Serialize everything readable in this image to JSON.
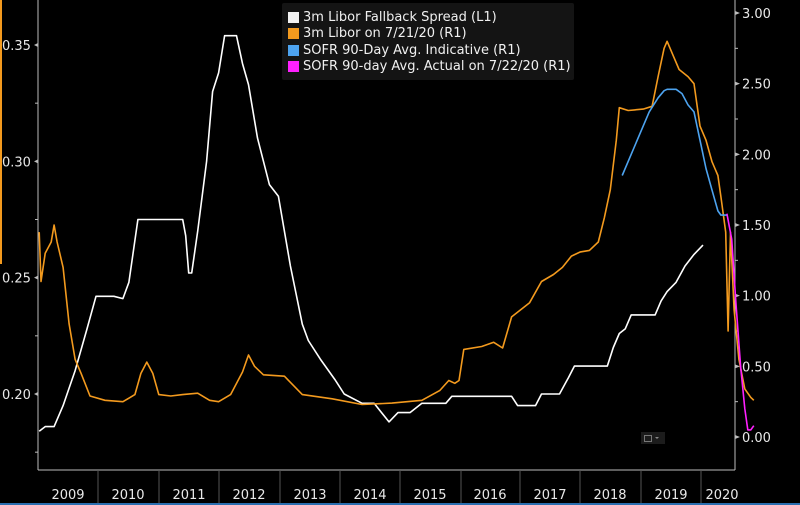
{
  "chart_data": {
    "type": "line",
    "title": "",
    "xlabel": "",
    "ylabel_left": "",
    "ylabel_right": "",
    "x_ticks": [
      "2009",
      "2010",
      "2011",
      "2012",
      "2013",
      "2014",
      "2015",
      "2016",
      "2017",
      "2018",
      "2019",
      "2020"
    ],
    "left_axis": {
      "ticks": [
        "0.35",
        "0.30",
        "0.25",
        "0.20"
      ],
      "range": [
        0.18,
        0.37
      ]
    },
    "right_axis": {
      "ticks": [
        "3.00",
        "2.50",
        "2.00",
        "1.50",
        "1.00",
        "0.50",
        "0.00"
      ],
      "range": [
        -0.25,
        3.1
      ]
    },
    "legend_position": "top-center",
    "grid": false,
    "series": [
      {
        "name": "3m Libor Fallback Spread (L1)",
        "axis": "left",
        "color": "#ffffff",
        "points": [
          [
            2008.6,
            0.184
          ],
          [
            2008.7,
            0.186
          ],
          [
            2008.85,
            0.186
          ],
          [
            2009.0,
            0.195
          ],
          [
            2009.2,
            0.21
          ],
          [
            2009.4,
            0.228
          ],
          [
            2009.55,
            0.242
          ],
          [
            2009.85,
            0.242
          ],
          [
            2010.0,
            0.241
          ],
          [
            2010.1,
            0.248
          ],
          [
            2010.25,
            0.275
          ],
          [
            2010.7,
            0.275
          ],
          [
            2011.0,
            0.275
          ],
          [
            2011.05,
            0.268
          ],
          [
            2011.1,
            0.252
          ],
          [
            2011.15,
            0.252
          ],
          [
            2011.25,
            0.27
          ],
          [
            2011.4,
            0.3
          ],
          [
            2011.5,
            0.33
          ],
          [
            2011.6,
            0.338
          ],
          [
            2011.7,
            0.354
          ],
          [
            2011.9,
            0.354
          ],
          [
            2012.0,
            0.342
          ],
          [
            2012.1,
            0.333
          ],
          [
            2012.25,
            0.31
          ],
          [
            2012.45,
            0.29
          ],
          [
            2012.6,
            0.285
          ],
          [
            2012.8,
            0.255
          ],
          [
            2013.0,
            0.23
          ],
          [
            2013.1,
            0.223
          ],
          [
            2013.3,
            0.215
          ],
          [
            2013.55,
            0.206
          ],
          [
            2013.7,
            0.2
          ],
          [
            2014.0,
            0.196
          ],
          [
            2014.2,
            0.196
          ],
          [
            2014.45,
            0.188
          ],
          [
            2014.6,
            0.192
          ],
          [
            2014.8,
            0.192
          ],
          [
            2015.0,
            0.196
          ],
          [
            2015.4,
            0.196
          ],
          [
            2015.5,
            0.199
          ],
          [
            2016.5,
            0.199
          ],
          [
            2016.6,
            0.195
          ],
          [
            2016.9,
            0.195
          ],
          [
            2017.0,
            0.2
          ],
          [
            2017.3,
            0.2
          ],
          [
            2017.45,
            0.207
          ],
          [
            2017.55,
            0.212
          ],
          [
            2018.1,
            0.212
          ],
          [
            2018.2,
            0.22
          ],
          [
            2018.3,
            0.226
          ],
          [
            2018.4,
            0.228
          ],
          [
            2018.5,
            0.234
          ],
          [
            2018.9,
            0.234
          ],
          [
            2019.0,
            0.24
          ],
          [
            2019.1,
            0.244
          ],
          [
            2019.25,
            0.248
          ],
          [
            2019.4,
            0.255
          ],
          [
            2019.55,
            0.26
          ],
          [
            2019.7,
            0.264
          ]
        ]
      },
      {
        "name": "3m Libor on 7/21/20 (R1)",
        "axis": "right",
        "color": "#f39a1e",
        "points": [
          [
            2008.6,
            1.45
          ],
          [
            2008.63,
            1.1
          ],
          [
            2008.7,
            1.3
          ],
          [
            2008.8,
            1.38
          ],
          [
            2008.85,
            1.5
          ],
          [
            2008.9,
            1.38
          ],
          [
            2009.0,
            1.2
          ],
          [
            2009.1,
            0.8
          ],
          [
            2009.2,
            0.55
          ],
          [
            2009.3,
            0.45
          ],
          [
            2009.45,
            0.29
          ],
          [
            2009.7,
            0.26
          ],
          [
            2010.0,
            0.25
          ],
          [
            2010.2,
            0.3
          ],
          [
            2010.3,
            0.45
          ],
          [
            2010.4,
            0.53
          ],
          [
            2010.5,
            0.45
          ],
          [
            2010.6,
            0.3
          ],
          [
            2010.8,
            0.29
          ],
          [
            2011.0,
            0.3
          ],
          [
            2011.25,
            0.31
          ],
          [
            2011.45,
            0.26
          ],
          [
            2011.6,
            0.25
          ],
          [
            2011.8,
            0.3
          ],
          [
            2012.0,
            0.46
          ],
          [
            2012.1,
            0.58
          ],
          [
            2012.2,
            0.5
          ],
          [
            2012.35,
            0.44
          ],
          [
            2012.7,
            0.43
          ],
          [
            2013.0,
            0.3
          ],
          [
            2013.5,
            0.27
          ],
          [
            2014.0,
            0.23
          ],
          [
            2014.5,
            0.24
          ],
          [
            2015.0,
            0.26
          ],
          [
            2015.3,
            0.33
          ],
          [
            2015.45,
            0.4
          ],
          [
            2015.55,
            0.38
          ],
          [
            2015.62,
            0.4
          ],
          [
            2015.7,
            0.62
          ],
          [
            2016.0,
            0.64
          ],
          [
            2016.2,
            0.67
          ],
          [
            2016.35,
            0.63
          ],
          [
            2016.5,
            0.85
          ],
          [
            2016.8,
            0.95
          ],
          [
            2017.0,
            1.1
          ],
          [
            2017.2,
            1.15
          ],
          [
            2017.35,
            1.2
          ],
          [
            2017.5,
            1.28
          ],
          [
            2017.65,
            1.31
          ],
          [
            2017.8,
            1.32
          ],
          [
            2017.95,
            1.38
          ],
          [
            2018.05,
            1.55
          ],
          [
            2018.15,
            1.75
          ],
          [
            2018.25,
            2.1
          ],
          [
            2018.3,
            2.33
          ],
          [
            2018.45,
            2.31
          ],
          [
            2018.7,
            2.32
          ],
          [
            2018.85,
            2.34
          ],
          [
            2018.95,
            2.55
          ],
          [
            2019.05,
            2.75
          ],
          [
            2019.1,
            2.8
          ],
          [
            2019.2,
            2.7
          ],
          [
            2019.3,
            2.6
          ],
          [
            2019.45,
            2.55
          ],
          [
            2019.55,
            2.5
          ],
          [
            2019.65,
            2.2
          ],
          [
            2019.75,
            2.1
          ],
          [
            2019.85,
            1.95
          ],
          [
            2019.9,
            1.9
          ],
          [
            2019.95,
            1.85
          ],
          [
            2020.0,
            1.7
          ],
          [
            2020.08,
            1.45
          ],
          [
            2020.12,
            0.75
          ],
          [
            2020.16,
            1.45
          ],
          [
            2020.22,
            0.9
          ],
          [
            2020.3,
            0.55
          ],
          [
            2020.4,
            0.34
          ],
          [
            2020.5,
            0.28
          ],
          [
            2020.55,
            0.26
          ]
        ]
      },
      {
        "name": "SOFR 90-Day Avg. Indicative (R1)",
        "axis": "right",
        "color": "#4da3ef",
        "points": [
          [
            2018.35,
            1.85
          ],
          [
            2018.5,
            2.0
          ],
          [
            2018.65,
            2.15
          ],
          [
            2018.8,
            2.3
          ],
          [
            2018.95,
            2.4
          ],
          [
            2019.05,
            2.45
          ],
          [
            2019.1,
            2.46
          ],
          [
            2019.25,
            2.46
          ],
          [
            2019.35,
            2.43
          ],
          [
            2019.45,
            2.35
          ],
          [
            2019.55,
            2.3
          ],
          [
            2019.65,
            2.1
          ],
          [
            2019.75,
            1.9
          ],
          [
            2019.85,
            1.75
          ],
          [
            2019.95,
            1.6
          ],
          [
            2020.0,
            1.57
          ],
          [
            2020.1,
            1.57
          ]
        ]
      },
      {
        "name": "SOFR 90-day Avg. Actual on 7/22/20 (R1)",
        "axis": "right",
        "color": "#ff20ff",
        "points": [
          [
            2020.1,
            1.58
          ],
          [
            2020.18,
            1.4
          ],
          [
            2020.25,
            0.95
          ],
          [
            2020.33,
            0.5
          ],
          [
            2020.4,
            0.2
          ],
          [
            2020.45,
            0.05
          ],
          [
            2020.5,
            0.05
          ],
          [
            2020.55,
            0.08
          ]
        ]
      }
    ]
  },
  "legend": {
    "items": [
      {
        "label": "3m Libor Fallback Spread (L1)",
        "color": "#f2f2f2"
      },
      {
        "label": "3m Libor on 7/21/20 (R1)",
        "color": "#f39a1e"
      },
      {
        "label": "SOFR 90-Day Avg. Indicative (R1)",
        "color": "#4da3ef"
      },
      {
        "label": "SOFR 90-day Avg. Actual on 7/22/20 (R1)",
        "color": "#ff20ff"
      }
    ]
  },
  "colors": {
    "background": "#000000",
    "axis": "#bdbdbd",
    "accent_left": "#f39a1e",
    "bottom_bar": "#2a6fb0"
  }
}
